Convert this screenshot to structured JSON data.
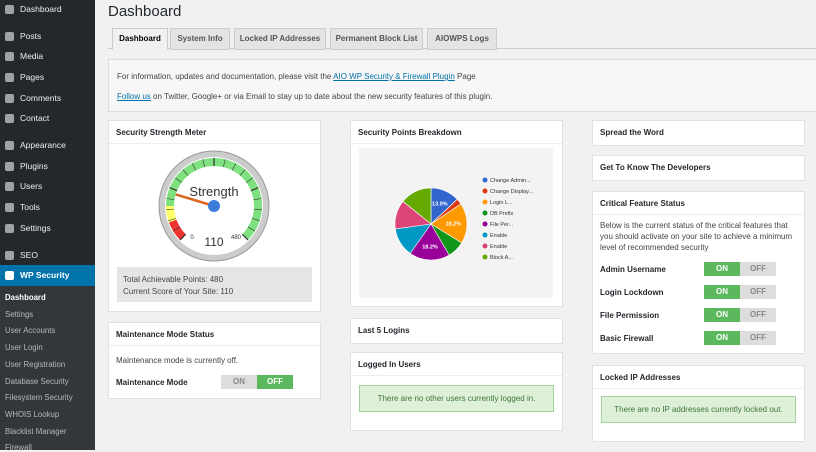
{
  "sidebar": {
    "menu": [
      {
        "label": "Dashboard"
      },
      {
        "label": "Posts"
      },
      {
        "label": "Media"
      },
      {
        "label": "Pages"
      },
      {
        "label": "Comments"
      },
      {
        "label": "Contact"
      },
      {
        "label": "Appearance"
      },
      {
        "label": "Plugins"
      },
      {
        "label": "Users"
      },
      {
        "label": "Tools"
      },
      {
        "label": "Settings"
      },
      {
        "label": "SEO"
      },
      {
        "label": "WP Security"
      }
    ],
    "submenu": [
      "Dashboard",
      "Settings",
      "User Accounts",
      "User Login",
      "User Registration",
      "Database Security",
      "Filesystem Security",
      "WHOIS Lookup",
      "Blacklist Manager",
      "Firewall"
    ]
  },
  "header": {
    "title": "Dashboard"
  },
  "tabs": [
    "Dashboard",
    "System Info",
    "Locked IP Addresses",
    "Permanent Block List",
    "AIOWPS Logs"
  ],
  "info": {
    "line1_before": "For information, updates and documentation, please visit the",
    "line1_link": "AIO WP Security & Firewall Plugin",
    "line1_after": "Page",
    "line2_link": "Follow us",
    "line2_after": "on Twitter, Google+ or via Email to stay up to date about the new security features of this plugin."
  },
  "strength_meter": {
    "title": "Security Strength Meter",
    "gauge_label": "Strength",
    "min": 0,
    "max": 480,
    "value": 110,
    "total_text": "Total Achievable Points: 480",
    "current_text": "Current Score of Your Site: 110"
  },
  "maintenance": {
    "title": "Maintenance Mode Status",
    "text": "Maintenance mode is currently off.",
    "label": "Maintenance Mode",
    "on": "ON",
    "off": "OFF",
    "state": "off"
  },
  "breakdown": {
    "title": "Security Points Breakdown",
    "labels": [
      "Change Admin...",
      "Change Display...",
      "Login L...",
      "DB Prefix",
      "File Per...",
      "Enable",
      "Enable",
      "Block A..."
    ],
    "colors": [
      "#3366cc",
      "#dc3912",
      "#ff9900",
      "#109618",
      "#990099",
      "#0099c6",
      "#dd4477",
      "#66aa00"
    ],
    "values": [
      13.0,
      2.6,
      18.2,
      7.8,
      18.2,
      13.0,
      13.0,
      14.2
    ],
    "value_labels": [
      "13.0%",
      null,
      "18.2%",
      null,
      "18.2%",
      null,
      null,
      null
    ]
  },
  "last_logins": {
    "title": "Last 5 Logins"
  },
  "logged_in": {
    "title": "Logged In Users",
    "notice": "There are no other users currently logged in."
  },
  "spread": {
    "title": "Spread the Word"
  },
  "developers": {
    "title": "Get To Know The Developers"
  },
  "critical": {
    "title": "Critical Feature Status",
    "description": "Below is the current status of the critical features that you should activate on your site to achieve a minimum level of recommended security",
    "features": [
      {
        "label": "Admin Username",
        "on": "ON",
        "off": "OFF",
        "state": "on"
      },
      {
        "label": "Login Lockdown",
        "on": "ON",
        "off": "OFF",
        "state": "on"
      },
      {
        "label": "File Permission",
        "on": "ON",
        "off": "OFF",
        "state": "on"
      },
      {
        "label": "Basic Firewall",
        "on": "ON",
        "off": "OFF",
        "state": "on"
      }
    ]
  },
  "locked_ip": {
    "title": "Locked IP Addresses",
    "notice": "There are no IP addresses currently locked out."
  }
}
